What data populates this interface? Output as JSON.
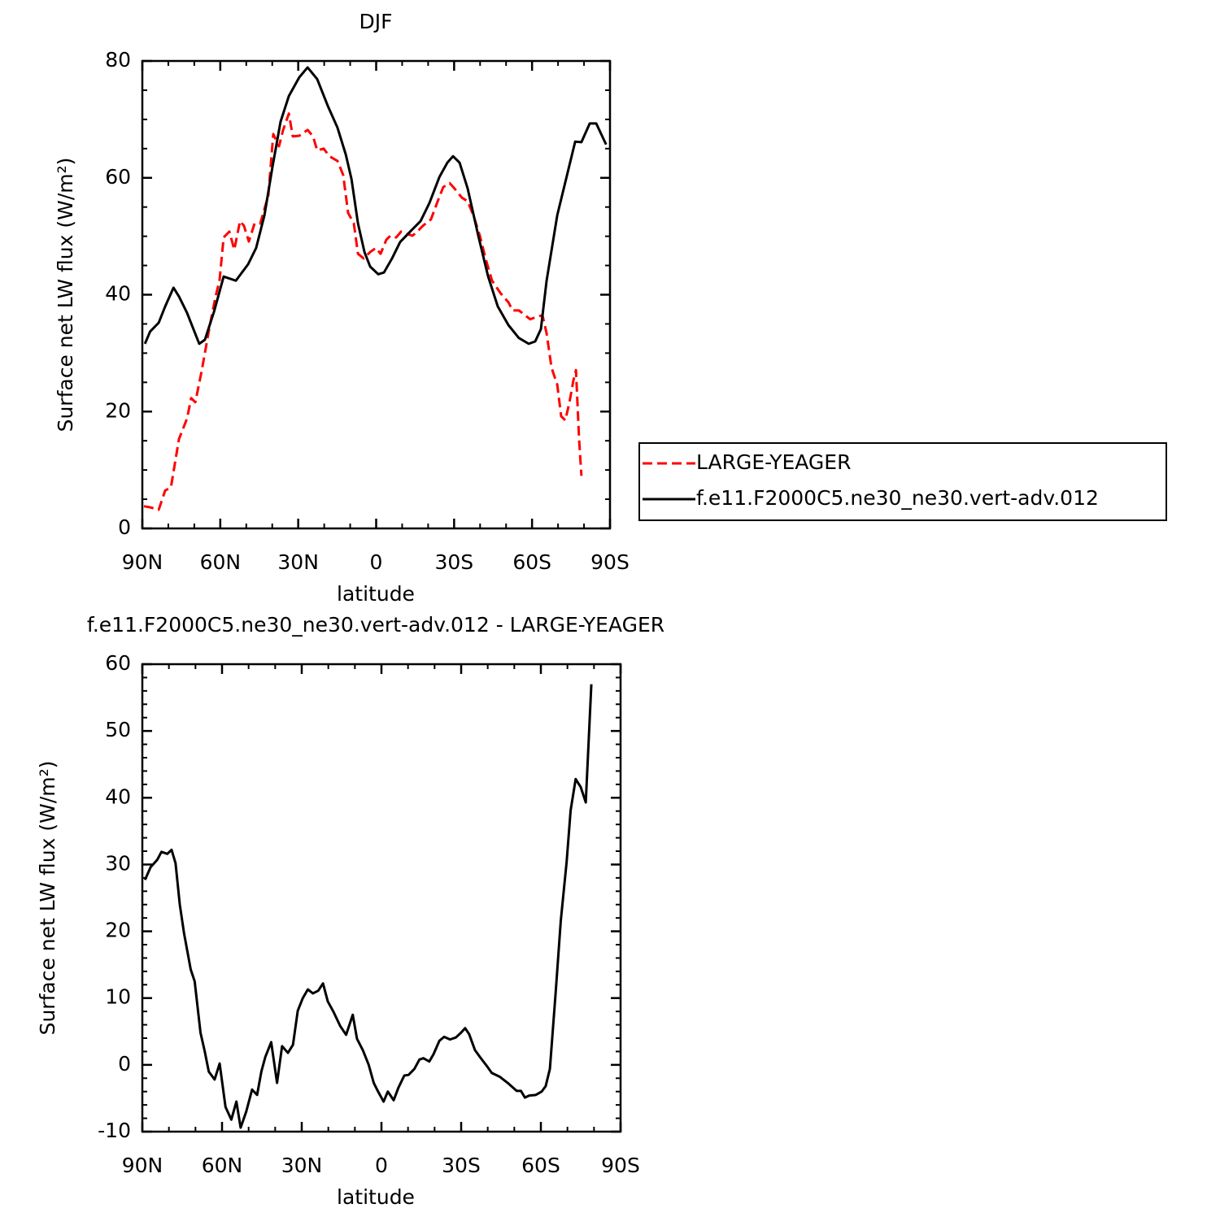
{
  "chart_data": [
    {
      "type": "line",
      "title": "DJF",
      "xlabel": "latitude",
      "ylabel": "Surface net LW flux (W/m²)",
      "xlim": [
        90,
        -90
      ],
      "xticks": [
        {
          "value": 90,
          "label": "90N"
        },
        {
          "value": 60,
          "label": "60N"
        },
        {
          "value": 30,
          "label": "30N"
        },
        0,
        {
          "value": -30,
          "label": "30S"
        },
        {
          "value": -60,
          "label": "60S"
        },
        {
          "value": -90,
          "label": "90S"
        }
      ],
      "ylim": [
        0,
        80
      ],
      "yticks": [
        0,
        20,
        40,
        60,
        80
      ],
      "series": [
        {
          "name": "LARGE-YEAGER",
          "color": "#ff0000",
          "dash": true,
          "x": [
            89.4,
            86.9,
            83.7,
            81.2,
            79,
            75.9,
            72.8,
            71.2,
            69.6,
            67.1,
            64,
            61.8,
            60.3,
            58.7,
            56.5,
            54.6,
            52.4,
            50.9,
            49,
            46.8,
            44.6,
            41.5,
            39.6,
            37.4,
            35.8,
            33.6,
            32.1,
            29.6,
            26.4,
            24.3,
            22.7,
            20.2,
            18,
            14.9,
            12.7,
            10.8,
            8.6,
            7,
            4.8,
            2.3,
            0.1,
            -1.7,
            -3.9,
            -5.5,
            -7.7,
            -9.6,
            -11.8,
            -14,
            -15.8,
            -18,
            -21.1,
            -23.6,
            -25.8,
            -28.3,
            -30.5,
            -33,
            -35.2,
            -37.4,
            -39.9,
            -42.1,
            -44.6,
            -47.8,
            -50.9,
            -52.5,
            -55,
            -57.2,
            -59.3,
            -61.8,
            -64,
            -65.6,
            -67.5,
            -69.7,
            -71.2,
            -72.8,
            -74.4,
            -75.9,
            -76.9,
            -78.1,
            -79
          ],
          "values": [
            3.8,
            3.6,
            3.2,
            6.5,
            7,
            15.3,
            18.8,
            22.3,
            21.6,
            27.1,
            34.8,
            39.7,
            42.4,
            49.8,
            50.8,
            47.7,
            52.6,
            51.8,
            49.1,
            52.2,
            52.2,
            57,
            67.5,
            65.4,
            68.2,
            71,
            67.1,
            67.2,
            68.2,
            67.1,
            64.7,
            65,
            63.7,
            62.9,
            60.5,
            54,
            52.2,
            47,
            46.2,
            47.3,
            48,
            47,
            49.4,
            50.1,
            49.8,
            50.8,
            50.4,
            50.1,
            50.8,
            51.8,
            52.9,
            55.9,
            58.4,
            59.1,
            58,
            56.6,
            56,
            53.6,
            50.1,
            46.2,
            42.4,
            40.3,
            38.7,
            37.3,
            37.3,
            36.5,
            35.8,
            36.2,
            36.5,
            33.4,
            27.5,
            24.6,
            19.2,
            18.5,
            21.6,
            25.3,
            27.1,
            15.3,
            9
          ]
        },
        {
          "name": "f.e11.F2000C5.ne30_ne30.vert-adv.012",
          "color": "#000000",
          "dash": false,
          "x": [
            89,
            87,
            83.7,
            81.2,
            78,
            75.9,
            72.8,
            68.1,
            65.9,
            62.4,
            58.7,
            54,
            49.3,
            46.2,
            43,
            39.9,
            36.8,
            33.6,
            29.6,
            26.4,
            22.7,
            18.6,
            14.9,
            11.7,
            9.5,
            7,
            4.5,
            2.3,
            -0.8,
            -3,
            -6.1,
            -9.2,
            -13.3,
            -17.1,
            -20.5,
            -24.3,
            -27.4,
            -29.6,
            -32.1,
            -35.2,
            -39.3,
            -43.1,
            -46.8,
            -50.9,
            -54.9,
            -58.7,
            -61.2,
            -63.4,
            -65.6,
            -69.7,
            -73.7,
            -76.6,
            -79,
            -82.2,
            -84.7,
            -88.5
          ],
          "values": [
            31.6,
            33.7,
            35.2,
            38,
            41.2,
            39.7,
            36.9,
            31.6,
            32.3,
            37.1,
            43.1,
            42.4,
            45.2,
            48,
            53.6,
            61.9,
            69.6,
            74,
            77.2,
            78.9,
            76.9,
            72.3,
            68.6,
            64,
            59.8,
            52.2,
            47.3,
            44.8,
            43.5,
            43.8,
            46.2,
            49,
            50.9,
            52.6,
            55.7,
            60.1,
            62.6,
            63.7,
            62.6,
            58.2,
            50.1,
            43.1,
            38,
            34.8,
            32.6,
            31.6,
            32,
            34.1,
            42.4,
            53.6,
            60.9,
            66.2,
            66.1,
            69.3,
            69.3,
            65.7
          ]
        }
      ]
    },
    {
      "type": "line",
      "title": "f.e11.F2000C5.ne30_ne30.vert-adv.012 - LARGE-YEAGER",
      "xlabel": "latitude",
      "ylabel": "Surface net LW flux (W/m²)",
      "xlim": [
        90,
        -90
      ],
      "xticks": [
        {
          "value": 90,
          "label": "90N"
        },
        {
          "value": 60,
          "label": "60N"
        },
        {
          "value": 30,
          "label": "30N"
        },
        0,
        {
          "value": -30,
          "label": "30S"
        },
        {
          "value": -60,
          "label": "60S"
        },
        {
          "value": -90,
          "label": "90S"
        }
      ],
      "ylim": [
        -10,
        60
      ],
      "yticks": [
        -10,
        0,
        10,
        20,
        30,
        40,
        50,
        60
      ],
      "series": [
        {
          "color": "#000000",
          "dash": false,
          "x": [
            89,
            86.9,
            84.4,
            82.8,
            80.6,
            79,
            77.5,
            75.9,
            74.3,
            71.8,
            70.3,
            68.1,
            66.5,
            65,
            62.8,
            60.9,
            58.7,
            56.5,
            54.6,
            53,
            50.9,
            48.7,
            46.8,
            45.2,
            43.7,
            41.5,
            39.3,
            37.4,
            35.2,
            33.3,
            31.5,
            29.6,
            27.7,
            25.8,
            23.8,
            22,
            20.2,
            18,
            15.5,
            13.3,
            10.8,
            9.2,
            7,
            4.8,
            2.9,
            1.4,
            -0.8,
            -2.4,
            -4.6,
            -6.4,
            -8.6,
            -10.2,
            -12.4,
            -14.3,
            -15.8,
            -18,
            -19.6,
            -21.8,
            -23.6,
            -25.8,
            -28,
            -29.9,
            -31.5,
            -33,
            -35.2,
            -37.4,
            -39.9,
            -41.5,
            -44.6,
            -47.8,
            -50.9,
            -52.5,
            -54,
            -55.6,
            -58.1,
            -60.3,
            -61.8,
            -63.4,
            -65.6,
            -67.5,
            -69.7,
            -71.2,
            -73.1,
            -75,
            -76.9,
            -79
          ],
          "values": [
            27.7,
            29.6,
            30.7,
            31.9,
            31.6,
            32.2,
            30.2,
            24,
            19.7,
            14.3,
            12.5,
            4.8,
            2,
            -1,
            -2.2,
            0.2,
            -6.3,
            -8.2,
            -5.5,
            -9.4,
            -7,
            -3.7,
            -4.5,
            -1,
            1.2,
            3.4,
            -2.7,
            2.8,
            1.8,
            3,
            8.1,
            10,
            11.3,
            10.7,
            11.1,
            12.2,
            9.5,
            7.9,
            5.8,
            4.5,
            7.5,
            3.9,
            2.2,
            0,
            -2.7,
            -3.9,
            -5.5,
            -4,
            -5.3,
            -3.4,
            -1.6,
            -1.5,
            -0.6,
            0.8,
            1,
            0.5,
            1.6,
            3.6,
            4.2,
            3.8,
            4.1,
            4.8,
            5.5,
            4.6,
            2.2,
            1,
            -0.3,
            -1.2,
            -1.8,
            -2.8,
            -3.9,
            -3.9,
            -4.9,
            -4.6,
            -4.5,
            -4,
            -3.2,
            -0.6,
            11,
            21.6,
            30.4,
            38.1,
            42.8,
            41.6,
            39.3,
            57
          ]
        }
      ]
    }
  ]
}
